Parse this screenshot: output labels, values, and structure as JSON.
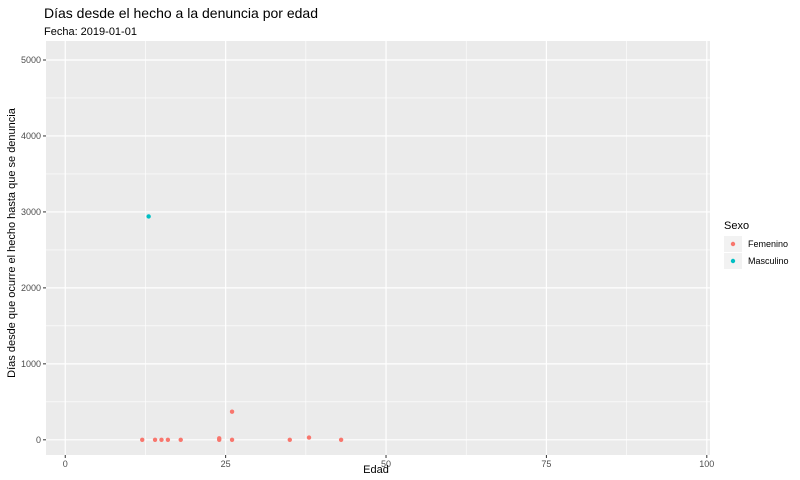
{
  "chart_data": {
    "type": "scatter",
    "title": "Días desde el hecho a la denuncia por edad",
    "subtitle": "Fecha: 2019-01-01",
    "xlabel": "Edad",
    "ylabel": "Días desde que ocurre el hecho hasta que se denuncia",
    "xlim": [
      -3,
      100.5
    ],
    "ylim": [
      -200,
      5250
    ],
    "x_ticks": [
      0,
      25,
      50,
      75,
      100
    ],
    "y_ticks": [
      0,
      1000,
      2000,
      3000,
      4000,
      5000
    ],
    "grid": true,
    "legend": {
      "title": "Sexo",
      "position": "right"
    },
    "series": [
      {
        "name": "Femenino",
        "color": "#F8766D",
        "points": [
          {
            "x": 12,
            "y": 0
          },
          {
            "x": 14,
            "y": 0
          },
          {
            "x": 15,
            "y": 0
          },
          {
            "x": 16,
            "y": 0
          },
          {
            "x": 18,
            "y": 0
          },
          {
            "x": 24,
            "y": 0
          },
          {
            "x": 24,
            "y": 20
          },
          {
            "x": 26,
            "y": 0
          },
          {
            "x": 26,
            "y": 370
          },
          {
            "x": 35,
            "y": 0
          },
          {
            "x": 38,
            "y": 30
          },
          {
            "x": 43,
            "y": 0
          }
        ]
      },
      {
        "name": "Masculino",
        "color": "#00BFC4",
        "points": [
          {
            "x": 13,
            "y": 2940
          }
        ]
      }
    ]
  },
  "theme": {
    "panel_background": "#EBEBEB",
    "grid_major": "#FFFFFF",
    "tick_color": "#333333"
  }
}
